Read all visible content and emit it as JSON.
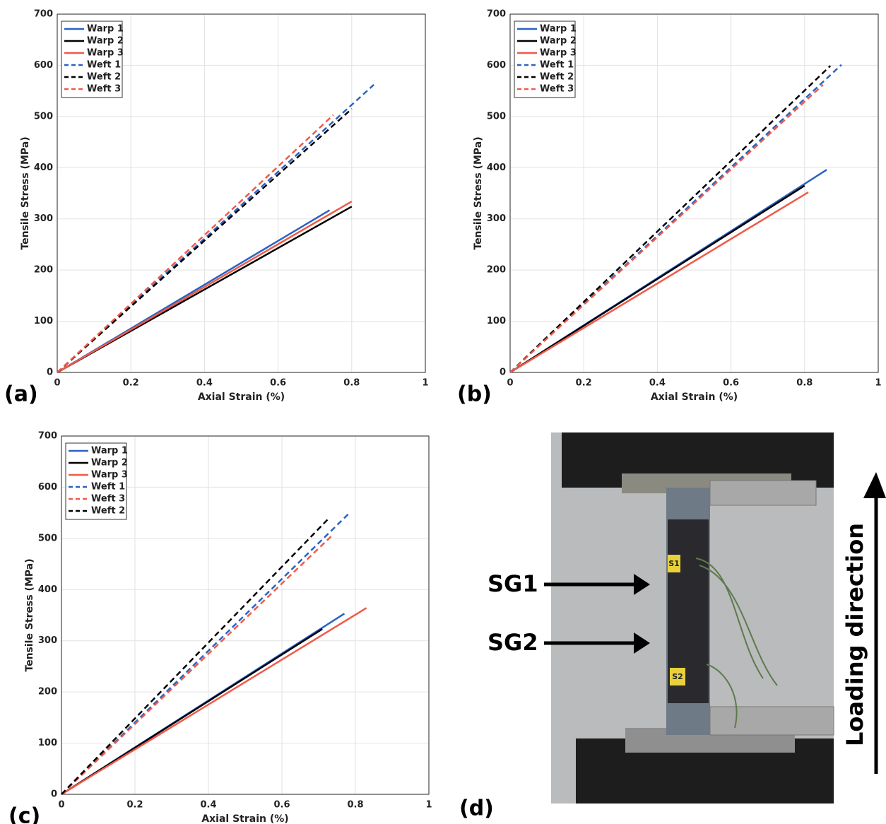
{
  "chart_data": [
    {
      "type": "line",
      "panel_label": "(a)",
      "xlabel": "Axial Strain (%)",
      "ylabel": "Tensile Stress (MPa)",
      "xlim": [
        0,
        1
      ],
      "ylim": [
        0,
        700
      ],
      "xticks": [
        0,
        0.2,
        0.4,
        0.6,
        0.8,
        1
      ],
      "yticks": [
        0,
        100,
        200,
        300,
        400,
        500,
        600,
        700
      ],
      "grid": true,
      "legend": "upper left",
      "series": [
        {
          "name": "Warp 1",
          "color": "#2a62c4",
          "linestyle": "solid",
          "x": [
            0,
            0.74
          ],
          "values": [
            0,
            317
          ]
        },
        {
          "name": "Warp 2",
          "color": "#000000",
          "linestyle": "solid",
          "x": [
            0,
            0.8
          ],
          "values": [
            0,
            324
          ]
        },
        {
          "name": "Warp 3",
          "color": "#f05a48",
          "linestyle": "solid",
          "x": [
            0,
            0.8
          ],
          "values": [
            0,
            334
          ]
        },
        {
          "name": "Weft 1",
          "color": "#2a62c4",
          "linestyle": "dashed",
          "x": [
            0,
            0.86
          ],
          "values": [
            0,
            562
          ]
        },
        {
          "name": "Weft 2",
          "color": "#000000",
          "linestyle": "dashed",
          "x": [
            0,
            0.8
          ],
          "values": [
            0,
            515
          ]
        },
        {
          "name": "Weft 3",
          "color": "#f05a48",
          "linestyle": "dashed",
          "x": [
            0,
            0.75
          ],
          "values": [
            0,
            503
          ]
        }
      ]
    },
    {
      "type": "line",
      "panel_label": "(b)",
      "xlabel": "Axial Strain (%)",
      "ylabel": "Tensile Stress (MPa)",
      "xlim": [
        0,
        1
      ],
      "ylim": [
        0,
        700
      ],
      "xticks": [
        0,
        0.2,
        0.4,
        0.6,
        0.8,
        1
      ],
      "yticks": [
        0,
        100,
        200,
        300,
        400,
        500,
        600,
        700
      ],
      "grid": true,
      "legend": "upper left",
      "series": [
        {
          "name": "Warp 1",
          "color": "#2a62c4",
          "linestyle": "solid",
          "x": [
            0,
            0.86
          ],
          "values": [
            0,
            396
          ]
        },
        {
          "name": "Warp 2",
          "color": "#000000",
          "linestyle": "solid",
          "x": [
            0,
            0.8
          ],
          "values": [
            0,
            365
          ]
        },
        {
          "name": "Warp 3",
          "color": "#f05a48",
          "linestyle": "solid",
          "x": [
            0,
            0.81
          ],
          "values": [
            0,
            352
          ]
        },
        {
          "name": "Weft 1",
          "color": "#2a62c4",
          "linestyle": "dashed",
          "x": [
            0,
            0.9
          ],
          "values": [
            0,
            601
          ]
        },
        {
          "name": "Weft 2",
          "color": "#000000",
          "linestyle": "dashed",
          "x": [
            0,
            0.87
          ],
          "values": [
            0,
            599
          ]
        },
        {
          "name": "Weft 3",
          "color": "#f05a48",
          "linestyle": "dashed",
          "x": [
            0,
            0.85
          ],
          "values": [
            0,
            562
          ]
        }
      ]
    },
    {
      "type": "line",
      "panel_label": "(c)",
      "xlabel": "Axial Strain (%)",
      "ylabel": "Tensile Stress (MPa)",
      "xlim": [
        0,
        1
      ],
      "ylim": [
        0,
        700
      ],
      "xticks": [
        0,
        0.2,
        0.4,
        0.6,
        0.8,
        1
      ],
      "yticks": [
        0,
        100,
        200,
        300,
        400,
        500,
        600,
        700
      ],
      "grid": true,
      "legend": "upper left",
      "series": [
        {
          "name": "Warp 1",
          "color": "#2a62c4",
          "linestyle": "solid",
          "x": [
            0,
            0.77
          ],
          "values": [
            0,
            353
          ]
        },
        {
          "name": "Warp 2",
          "color": "#000000",
          "linestyle": "solid",
          "x": [
            0,
            0.71
          ],
          "values": [
            0,
            323
          ]
        },
        {
          "name": "Warp 3",
          "color": "#f05a48",
          "linestyle": "solid",
          "x": [
            0,
            0.83
          ],
          "values": [
            0,
            364
          ]
        },
        {
          "name": "Weft 1",
          "color": "#2a62c4",
          "linestyle": "dashed",
          "x": [
            0,
            0.78
          ],
          "values": [
            0,
            547
          ]
        },
        {
          "name": "Weft 3",
          "color": "#f05a48",
          "linestyle": "dashed",
          "x": [
            0,
            0.74
          ],
          "values": [
            0,
            508
          ]
        },
        {
          "name": "Weft 2",
          "color": "#000000",
          "linestyle": "dashed",
          "x": [
            0,
            0.73
          ],
          "values": [
            0,
            541
          ]
        }
      ]
    }
  ],
  "photo": {
    "panel_label": "(d)",
    "labels": [
      "SG1",
      "SG2",
      "Loading direction"
    ],
    "specimen_tags": [
      "S1",
      "S2"
    ]
  }
}
